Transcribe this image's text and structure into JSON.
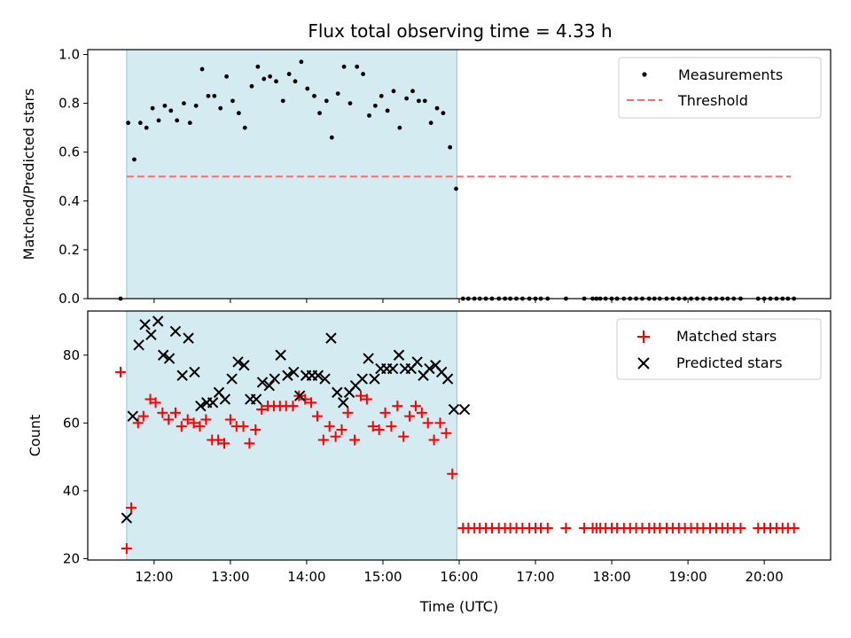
{
  "title": "Flux total observing time = 4.33 h",
  "colors": {
    "span": "#add8e6",
    "measurement": "#000000",
    "threshold": "#ff6b6b",
    "matched": "#ff0000",
    "predicted": "#000000"
  },
  "chart_data": [
    {
      "type": "scatter",
      "ylabel": "Matched/Predicted stars",
      "xlabel": "",
      "xlim": [
        11.13,
        20.87
      ],
      "ylim": [
        0,
        1.02
      ],
      "yticks": [
        0.0,
        0.2,
        0.4,
        0.6,
        0.8,
        1.0
      ],
      "ytick_labels": [
        "0.0",
        "0.2",
        "0.4",
        "0.6",
        "0.8",
        "1.0"
      ],
      "shaded_span": [
        11.64,
        15.97
      ],
      "legend": {
        "position": "upper right",
        "entries": [
          "Measurements",
          "Threshold"
        ]
      },
      "threshold": {
        "name": "Threshold",
        "y": 0.5,
        "x": [
          11.64,
          20.35
        ]
      },
      "series": [
        {
          "name": "Measurements",
          "x": [
            11.56,
            11.66,
            11.74,
            11.82,
            11.9,
            11.98,
            12.06,
            12.14,
            12.22,
            12.3,
            12.39,
            12.47,
            12.55,
            12.63,
            12.71,
            12.79,
            12.87,
            12.95,
            13.03,
            13.11,
            13.19,
            13.28,
            13.36,
            13.44,
            13.52,
            13.6,
            13.69,
            13.77,
            13.85,
            13.93,
            14.01,
            14.1,
            14.17,
            14.26,
            14.33,
            14.41,
            14.49,
            14.57,
            14.66,
            14.74,
            14.82,
            14.9,
            14.98,
            15.06,
            15.14,
            15.22,
            15.31,
            15.39,
            15.47,
            15.55,
            15.63,
            15.71,
            15.79,
            15.88,
            15.96,
            16.05,
            16.12,
            16.2,
            16.27,
            16.35,
            16.43,
            16.52,
            16.6,
            16.67,
            16.75,
            16.83,
            16.92,
            17.0,
            17.07,
            17.16,
            17.4,
            17.64,
            17.75,
            17.8,
            17.85,
            17.92,
            18.0,
            18.07,
            18.16,
            18.24,
            18.32,
            18.4,
            18.49,
            18.56,
            18.63,
            18.72,
            18.8,
            18.88,
            18.96,
            19.04,
            19.12,
            19.2,
            19.29,
            19.37,
            19.45,
            19.52,
            19.6,
            19.69,
            19.92,
            20.0,
            20.08,
            20.16,
            20.24,
            20.31,
            20.39
          ],
          "y": [
            0.0,
            0.72,
            0.57,
            0.72,
            0.7,
            0.78,
            0.73,
            0.79,
            0.77,
            0.73,
            0.8,
            0.72,
            0.79,
            0.94,
            0.83,
            0.83,
            0.78,
            0.91,
            0.81,
            0.76,
            0.7,
            0.87,
            0.95,
            0.9,
            0.91,
            0.89,
            0.81,
            0.92,
            0.89,
            0.97,
            0.86,
            0.83,
            0.76,
            0.81,
            0.66,
            0.84,
            0.95,
            0.8,
            0.95,
            0.92,
            0.75,
            0.79,
            0.83,
            0.77,
            0.85,
            0.7,
            0.82,
            0.85,
            0.81,
            0.81,
            0.72,
            0.78,
            0.76,
            0.62,
            0.45,
            0.0,
            0.0,
            0.0,
            0.0,
            0.0,
            0.0,
            0.0,
            0.0,
            0.0,
            0.0,
            0.0,
            0.0,
            0.0,
            0.0,
            0.0,
            0.0,
            0.0,
            0.0,
            0.0,
            0.0,
            0.0,
            0.0,
            0.0,
            0.0,
            0.0,
            0.0,
            0.0,
            0.0,
            0.0,
            0.0,
            0.0,
            0.0,
            0.0,
            0.0,
            0.0,
            0.0,
            0.0,
            0.0,
            0.0,
            0.0,
            0.0,
            0.0,
            0.0,
            0.0,
            0.0,
            0.0,
            0.0,
            0.0,
            0.0,
            0.0
          ]
        }
      ]
    },
    {
      "type": "scatter",
      "ylabel": "Count",
      "xlabel": "Time (UTC)",
      "xlim": [
        11.13,
        20.87
      ],
      "ylim": [
        19.6,
        93
      ],
      "yticks": [
        20,
        40,
        60,
        80
      ],
      "ytick_labels": [
        "20",
        "40",
        "60",
        "80"
      ],
      "xticks": [
        12,
        13,
        14,
        15,
        16,
        17,
        18,
        19,
        20
      ],
      "xtick_labels": [
        "12:00",
        "13:00",
        "14:00",
        "15:00",
        "16:00",
        "17:00",
        "18:00",
        "19:00",
        "20:00"
      ],
      "shaded_span": [
        11.64,
        15.97
      ],
      "legend": {
        "position": "upper right",
        "entries": [
          "Matched stars",
          "Predicted stars"
        ]
      },
      "series": [
        {
          "name": "Matched stars",
          "marker": "+",
          "x": [
            11.56,
            11.64,
            11.7,
            11.79,
            11.86,
            11.95,
            12.02,
            12.11,
            12.19,
            12.28,
            12.36,
            12.44,
            12.52,
            12.6,
            12.68,
            12.76,
            12.84,
            12.92,
            13.0,
            13.08,
            13.17,
            13.25,
            13.33,
            13.41,
            13.49,
            13.57,
            13.65,
            13.73,
            13.82,
            13.9,
            13.98,
            14.06,
            14.14,
            14.22,
            14.3,
            14.38,
            14.46,
            14.54,
            14.63,
            14.71,
            14.79,
            14.87,
            14.95,
            15.03,
            15.11,
            15.19,
            15.27,
            15.35,
            15.43,
            15.51,
            15.59,
            15.67,
            15.75,
            15.83,
            15.91,
            16.05,
            16.12,
            16.2,
            16.27,
            16.35,
            16.43,
            16.52,
            16.6,
            16.67,
            16.75,
            16.83,
            16.92,
            17.0,
            17.07,
            17.16,
            17.4,
            17.64,
            17.75,
            17.8,
            17.85,
            17.92,
            18.0,
            18.07,
            18.16,
            18.24,
            18.32,
            18.4,
            18.49,
            18.56,
            18.63,
            18.72,
            18.8,
            18.88,
            18.96,
            19.04,
            19.12,
            19.2,
            19.29,
            19.37,
            19.45,
            19.52,
            19.6,
            19.69,
            19.92,
            20.0,
            20.08,
            20.16,
            20.24,
            20.31,
            20.39
          ],
          "y": [
            75,
            23,
            35,
            60,
            62,
            67,
            66,
            63,
            61,
            63,
            59,
            61,
            60,
            59,
            61,
            55,
            55,
            54,
            61,
            59,
            59,
            54,
            58,
            64,
            65,
            65,
            65,
            65,
            65,
            68,
            67,
            66,
            62,
            55,
            59,
            56,
            58,
            63,
            55,
            68,
            67,
            59,
            58,
            63,
            59,
            65,
            56,
            62,
            65,
            63,
            60,
            55,
            60,
            57,
            45,
            29,
            29,
            29,
            29,
            29,
            29,
            29,
            29,
            29,
            29,
            29,
            29,
            29,
            29,
            29,
            29,
            29,
            29,
            29,
            29,
            29,
            29,
            29,
            29,
            29,
            29,
            29,
            29,
            29,
            29,
            29,
            29,
            29,
            29,
            29,
            29,
            29,
            29,
            29,
            29,
            29,
            29,
            29,
            29,
            29,
            29,
            29,
            29,
            29,
            29
          ]
        },
        {
          "name": "Predicted stars",
          "marker": "x",
          "x": [
            11.64,
            11.72,
            11.8,
            11.88,
            11.96,
            12.05,
            12.12,
            12.2,
            12.28,
            12.37,
            12.45,
            12.53,
            12.61,
            12.69,
            12.77,
            12.85,
            12.93,
            13.02,
            13.1,
            13.18,
            13.26,
            13.34,
            13.42,
            13.51,
            13.58,
            13.66,
            13.75,
            13.83,
            13.91,
            13.99,
            14.07,
            14.15,
            14.24,
            14.32,
            14.4,
            14.48,
            14.56,
            14.64,
            14.73,
            14.81,
            14.89,
            14.97,
            15.05,
            15.13,
            15.21,
            15.29,
            15.37,
            15.45,
            15.53,
            15.61,
            15.69,
            15.77,
            15.85,
            15.93,
            16.07
          ],
          "y": [
            32,
            62,
            83,
            89,
            86,
            90,
            80,
            79,
            87,
            74,
            85,
            75,
            65,
            66,
            66,
            69,
            67,
            73,
            78,
            77,
            67,
            67,
            72,
            71,
            73,
            80,
            74,
            75,
            68,
            74,
            74,
            74,
            73,
            85,
            69,
            66,
            69,
            71,
            73,
            79,
            73,
            76,
            76,
            76,
            80,
            76,
            76,
            78,
            74,
            76,
            77,
            75,
            73,
            64,
            64
          ]
        }
      ]
    }
  ]
}
